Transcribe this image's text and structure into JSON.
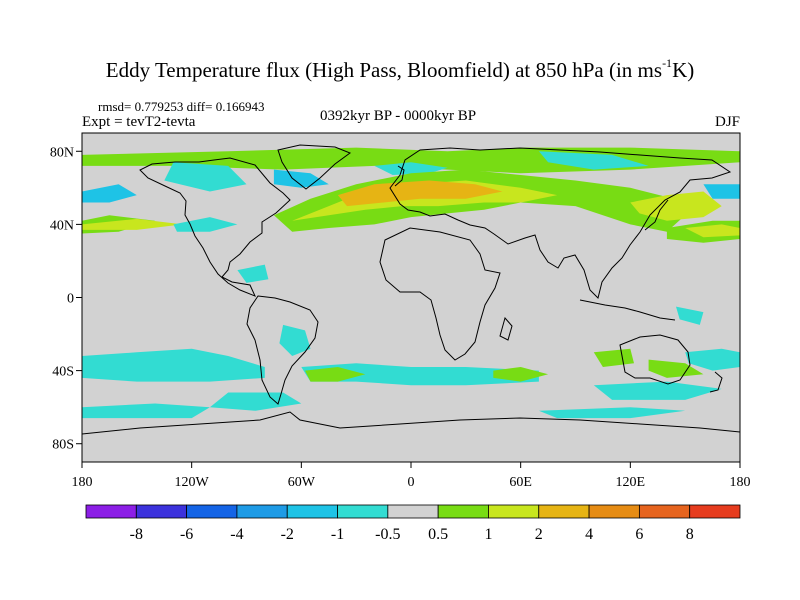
{
  "title": {
    "text": "Eddy Temperature flux (High Pass, Bloomfield) at 850 hPa (in ms",
    "sup": "-1",
    "suffix": "K)"
  },
  "stats": "rmsd= 0.779253 diff= 0.166943",
  "expt": "Expt = tevT2-tevta",
  "period": "0392kyr BP - 0000kyr BP",
  "season": "DJF",
  "axes": {
    "lat_labels": [
      "80N",
      "40N",
      "0",
      "40S",
      "80S"
    ],
    "lat_values": [
      80,
      40,
      0,
      -40,
      -80
    ],
    "lon_labels": [
      "180",
      "120W",
      "60W",
      "0",
      "60E",
      "120E",
      "180"
    ],
    "lon_values": [
      -180,
      -120,
      -60,
      0,
      60,
      120,
      180
    ],
    "lat_range": [
      -90,
      90
    ],
    "lon_range": [
      -180,
      180
    ]
  },
  "colorbar": {
    "labels": [
      "-8",
      "-6",
      "-4",
      "-2",
      "-1",
      "-0.5",
      "0.5",
      "1",
      "2",
      "4",
      "6",
      "8"
    ],
    "colors": [
      "#8c1ee6",
      "#3c32dc",
      "#1464e6",
      "#1e9be6",
      "#1ec3e6",
      "#32dcd2",
      "#d2d2d2",
      "#78dc14",
      "#c8e61e",
      "#e6b414",
      "#e68c14",
      "#e6641e",
      "#e63c1e"
    ]
  },
  "shading": {
    "background": "#d2d2d2",
    "regions": [
      {
        "level": 7,
        "pts": [
          [
            -180,
            78
          ],
          [
            -100,
            80
          ],
          [
            -30,
            82
          ],
          [
            20,
            80
          ],
          [
            60,
            82
          ],
          [
            120,
            82
          ],
          [
            180,
            80
          ],
          [
            180,
            74
          ],
          [
            120,
            70
          ],
          [
            60,
            68
          ],
          [
            20,
            70
          ],
          [
            -20,
            72
          ],
          [
            -70,
            70
          ],
          [
            -130,
            72
          ],
          [
            -180,
            72
          ]
        ]
      },
      {
        "level": 5,
        "pts": [
          [
            -130,
            74
          ],
          [
            -100,
            72
          ],
          [
            -90,
            62
          ],
          [
            -110,
            58
          ],
          [
            -135,
            64
          ]
        ]
      },
      {
        "level": 5,
        "pts": [
          [
            -20,
            72
          ],
          [
            0,
            74
          ],
          [
            20,
            71
          ],
          [
            10,
            68
          ],
          [
            -10,
            67
          ]
        ]
      },
      {
        "level": 5,
        "pts": [
          [
            70,
            80
          ],
          [
            110,
            78
          ],
          [
            130,
            72
          ],
          [
            100,
            70
          ],
          [
            75,
            74
          ]
        ]
      },
      {
        "level": 4,
        "pts": [
          [
            -180,
            58
          ],
          [
            -160,
            62
          ],
          [
            -150,
            56
          ],
          [
            -165,
            52
          ],
          [
            -180,
            52
          ]
        ]
      },
      {
        "level": 4,
        "pts": [
          [
            160,
            62
          ],
          [
            180,
            62
          ],
          [
            180,
            54
          ],
          [
            165,
            54
          ]
        ]
      },
      {
        "level": 4,
        "pts": [
          [
            -75,
            70
          ],
          [
            -55,
            68
          ],
          [
            -45,
            62
          ],
          [
            -60,
            60
          ],
          [
            -75,
            62
          ]
        ]
      },
      {
        "level": 7,
        "pts": [
          [
            -75,
            45
          ],
          [
            -55,
            54
          ],
          [
            -30,
            62
          ],
          [
            0,
            68
          ],
          [
            30,
            70
          ],
          [
            60,
            67
          ],
          [
            90,
            64
          ],
          [
            120,
            60
          ],
          [
            140,
            55
          ],
          [
            150,
            45
          ],
          [
            140,
            36
          ],
          [
            120,
            40
          ],
          [
            90,
            50
          ],
          [
            60,
            52
          ],
          [
            40,
            48
          ],
          [
            20,
            46
          ],
          [
            0,
            44
          ],
          [
            -20,
            40
          ],
          [
            -45,
            38
          ],
          [
            -65,
            36
          ]
        ]
      },
      {
        "level": 8,
        "pts": [
          [
            -65,
            42
          ],
          [
            -45,
            50
          ],
          [
            -25,
            58
          ],
          [
            0,
            62
          ],
          [
            30,
            64
          ],
          [
            60,
            60
          ],
          [
            80,
            56
          ],
          [
            60,
            52
          ],
          [
            40,
            52
          ],
          [
            15,
            50
          ],
          [
            -5,
            50
          ],
          [
            -25,
            48
          ],
          [
            -45,
            45
          ]
        ]
      },
      {
        "level": 9,
        "pts": [
          [
            -40,
            56
          ],
          [
            -20,
            62
          ],
          [
            10,
            64
          ],
          [
            35,
            62
          ],
          [
            50,
            58
          ],
          [
            30,
            54
          ],
          [
            5,
            54
          ],
          [
            -15,
            52
          ],
          [
            -35,
            50
          ]
        ]
      },
      {
        "level": 8,
        "pts": [
          [
            120,
            52
          ],
          [
            140,
            56
          ],
          [
            160,
            58
          ],
          [
            170,
            50
          ],
          [
            160,
            44
          ],
          [
            140,
            42
          ],
          [
            125,
            46
          ]
        ]
      },
      {
        "level": 7,
        "pts": [
          [
            140,
            38
          ],
          [
            165,
            42
          ],
          [
            180,
            42
          ],
          [
            180,
            32
          ],
          [
            160,
            30
          ],
          [
            140,
            32
          ]
        ]
      },
      {
        "level": 8,
        "pts": [
          [
            150,
            38
          ],
          [
            170,
            40
          ],
          [
            180,
            38
          ],
          [
            180,
            34
          ],
          [
            160,
            33
          ]
        ]
      },
      {
        "level": 7,
        "pts": [
          [
            -180,
            42
          ],
          [
            -165,
            45
          ],
          -1,
          [
            -140,
            42
          ],
          [
            -160,
            36
          ],
          [
            -180,
            35
          ]
        ]
      },
      {
        "level": 8,
        "pts": [
          [
            -180,
            40
          ],
          [
            -150,
            43
          ],
          [
            -125,
            40
          ],
          [
            -150,
            37
          ],
          [
            -180,
            37
          ]
        ]
      },
      {
        "level": 5,
        "pts": [
          [
            -130,
            40
          ],
          [
            -110,
            44
          ],
          [
            -95,
            40
          ],
          [
            -110,
            36
          ],
          [
            -128,
            36
          ]
        ]
      },
      {
        "level": 5,
        "pts": [
          [
            -180,
            -32
          ],
          [
            -150,
            -30
          ],
          [
            -120,
            -28
          ],
          [
            -100,
            -32
          ],
          [
            -80,
            -38
          ],
          [
            -80,
            -44
          ],
          [
            -110,
            -46
          ],
          [
            -150,
            -46
          ],
          [
            -180,
            -44
          ]
        ]
      },
      {
        "level": 5,
        "pts": [
          [
            -100,
            -52
          ],
          [
            -70,
            -52
          ],
          [
            -60,
            -58
          ],
          [
            -85,
            -62
          ],
          [
            -110,
            -60
          ]
        ]
      },
      {
        "level": 5,
        "pts": [
          [
            -180,
            -60
          ],
          [
            -140,
            -58
          ],
          [
            -110,
            -60
          ],
          [
            -120,
            -66
          ],
          [
            -180,
            -66
          ]
        ]
      },
      {
        "level": 5,
        "pts": [
          [
            -60,
            -38
          ],
          [
            -30,
            -36
          ],
          [
            0,
            -38
          ],
          [
            30,
            -38
          ],
          [
            70,
            -40
          ],
          [
            70,
            -46
          ],
          [
            30,
            -48
          ],
          [
            0,
            -48
          ],
          [
            -30,
            -46
          ],
          [
            -55,
            -46
          ]
        ]
      },
      {
        "level": 7,
        "pts": [
          [
            -58,
            -40
          ],
          [
            -40,
            -38
          ],
          [
            -25,
            -42
          ],
          [
            -40,
            -46
          ],
          [
            -55,
            -46
          ]
        ]
      },
      {
        "level": 7,
        "pts": [
          [
            45,
            -40
          ],
          [
            60,
            -38
          ],
          [
            75,
            -42
          ],
          [
            60,
            -46
          ],
          [
            45,
            -44
          ]
        ]
      },
      {
        "level": 7,
        "pts": [
          [
            100,
            -30
          ],
          [
            120,
            -28
          ],
          [
            122,
            -36
          ],
          [
            105,
            -38
          ]
        ]
      },
      {
        "level": 7,
        "pts": [
          [
            130,
            -34
          ],
          [
            150,
            -36
          ],
          [
            160,
            -42
          ],
          [
            140,
            -44
          ],
          [
            130,
            -40
          ]
        ]
      },
      {
        "level": 5,
        "pts": [
          [
            100,
            -48
          ],
          [
            140,
            -46
          ],
          [
            170,
            -50
          ],
          [
            150,
            -56
          ],
          [
            110,
            -56
          ]
        ]
      },
      {
        "level": 5,
        "pts": [
          [
            70,
            -62
          ],
          [
            120,
            -60
          ],
          [
            150,
            -62
          ],
          [
            120,
            -66
          ],
          [
            80,
            -66
          ]
        ]
      },
      {
        "level": 5,
        "pts": [
          [
            150,
            -30
          ],
          [
            170,
            -28
          ],
          [
            180,
            -30
          ],
          [
            180,
            -38
          ],
          [
            165,
            -40
          ],
          [
            152,
            -36
          ]
        ]
      },
      {
        "level": 5,
        "pts": [
          [
            -70,
            -15
          ],
          [
            -58,
            -18
          ],
          [
            -55,
            -28
          ],
          [
            -65,
            -32
          ],
          [
            -72,
            -25
          ]
        ]
      },
      {
        "level": 5,
        "pts": [
          [
            -95,
            15
          ],
          [
            -80,
            18
          ],
          [
            -78,
            10
          ],
          [
            -90,
            8
          ]
        ]
      },
      {
        "level": 5,
        "pts": [
          [
            145,
            -5
          ],
          [
            160,
            -8
          ],
          [
            158,
            -15
          ],
          [
            147,
            -12
          ]
        ]
      }
    ]
  }
}
